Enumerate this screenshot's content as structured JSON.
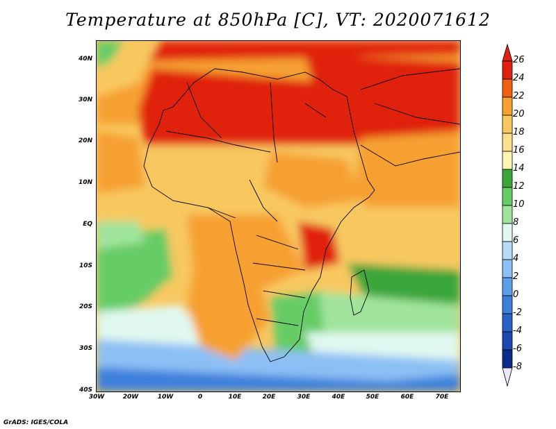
{
  "title": "Temperature at 850hPa [C], VT: 2020071612",
  "credit": "GrADS: IGES/COLA",
  "map": {
    "lat_labels": [
      "40N",
      "30N",
      "20N",
      "10N",
      "EQ",
      "10S",
      "20S",
      "30S",
      "40S"
    ],
    "lon_labels": [
      "30W",
      "20W",
      "10W",
      "0",
      "10E",
      "20E",
      "30E",
      "40E",
      "50E",
      "60E",
      "70E"
    ],
    "region": "Africa and Middle East",
    "lon_range": [
      -30,
      75
    ],
    "lat_range": [
      -40,
      45
    ]
  },
  "colorbar": {
    "labels": [
      "26",
      "24",
      "22",
      "20",
      "18",
      "16",
      "14",
      "12",
      "10",
      "8",
      "6",
      "4",
      "2",
      "0",
      "-2",
      "-4",
      "-6",
      "-8"
    ],
    "colors": [
      "#e02010",
      "#f06010",
      "#f6a030",
      "#f8c860",
      "#fae08c",
      "#fcf4b0",
      "#3aa63a",
      "#66cc66",
      "#a0e49c",
      "#e0f8f0",
      "#b8dcf8",
      "#8cc0f4",
      "#5a9ee8",
      "#3c80dc",
      "#2a62c8",
      "#1a48b0",
      "#0a2c8c",
      "#e8e8f8"
    ]
  }
}
